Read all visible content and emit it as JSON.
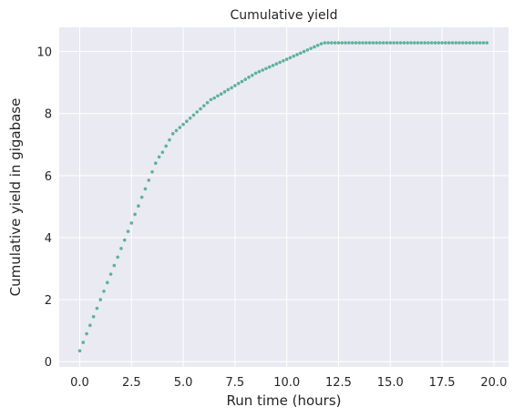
{
  "chart_data": {
    "type": "scatter",
    "title": "Cumulative yield",
    "xlabel": "Run time (hours)",
    "ylabel": "Cumulative yield in gigabase",
    "xlim": [
      -0.99,
      20.71
    ],
    "ylim": [
      -0.17,
      10.78
    ],
    "xticks": [
      0.0,
      2.5,
      5.0,
      7.5,
      10.0,
      12.5,
      15.0,
      17.5,
      20.0
    ],
    "xtick_labels": [
      "0.0",
      "2.5",
      "5.0",
      "7.5",
      "10.0",
      "12.5",
      "15.0",
      "17.5",
      "20.0"
    ],
    "yticks": [
      0,
      2,
      4,
      6,
      8,
      10
    ],
    "ytick_labels": [
      "0",
      "2",
      "4",
      "6",
      "8",
      "10"
    ],
    "grid": true,
    "colors": {
      "background": "#eaeaf2",
      "grid": "#ffffff",
      "series": "#5bb39a",
      "text": "#262626"
    },
    "series": [
      {
        "x": [
          0.0,
          0.1667,
          0.3333,
          0.5,
          0.6667,
          0.8333,
          1.0,
          1.1667,
          1.3333,
          1.5,
          1.6667,
          1.8333,
          2.0,
          2.1667,
          2.3333,
          2.5,
          2.6667,
          2.8333,
          3.0,
          3.1667,
          3.3333,
          3.5,
          3.6667,
          3.8333,
          4.0,
          4.1667,
          4.3333,
          4.5,
          4.6667,
          4.8333,
          5.0,
          5.1667,
          5.3333,
          5.5,
          5.6667,
          5.8333,
          6.0,
          6.1667,
          6.3333,
          6.5,
          6.6667,
          6.8333,
          7.0,
          7.1667,
          7.3333,
          7.5,
          7.6667,
          7.8333,
          8.0,
          8.1667,
          8.3333,
          8.5,
          8.6667,
          8.8333,
          9.0,
          9.1667,
          9.3333,
          9.5,
          9.6667,
          9.8333,
          10.0,
          10.1667,
          10.3333,
          10.5,
          10.6667,
          10.8333,
          11.0,
          11.1667,
          11.3333,
          11.5,
          11.6667,
          11.8333,
          12.0,
          12.1667,
          12.3333,
          12.5,
          12.6667,
          12.8333,
          13.0,
          13.1667,
          13.3333,
          13.5,
          13.6667,
          13.8333,
          14.0,
          14.1667,
          14.3333,
          14.5,
          14.6667,
          14.8333,
          15.0,
          15.1667,
          15.3333,
          15.5,
          15.6667,
          15.8333,
          16.0,
          16.1667,
          16.3333,
          16.5,
          16.6667,
          16.8333,
          17.0,
          17.1667,
          17.3333,
          17.5,
          17.6667,
          17.8333,
          18.0,
          18.1667,
          18.3333,
          18.5,
          18.6667,
          18.8333,
          19.0,
          19.1667,
          19.3333,
          19.5,
          19.6667
        ],
        "y": [
          0.35,
          0.62,
          0.9,
          1.17,
          1.45,
          1.72,
          2.0,
          2.27,
          2.55,
          2.82,
          3.1,
          3.37,
          3.65,
          3.92,
          4.2,
          4.47,
          4.75,
          5.02,
          5.3,
          5.57,
          5.85,
          6.12,
          6.4,
          6.6,
          6.75,
          6.95,
          7.15,
          7.35,
          7.45,
          7.55,
          7.65,
          7.75,
          7.85,
          7.95,
          8.05,
          8.15,
          8.25,
          8.35,
          8.45,
          8.5,
          8.57,
          8.63,
          8.7,
          8.77,
          8.83,
          8.9,
          8.97,
          9.03,
          9.1,
          9.17,
          9.23,
          9.3,
          9.35,
          9.4,
          9.45,
          9.5,
          9.55,
          9.6,
          9.65,
          9.7,
          9.75,
          9.8,
          9.85,
          9.9,
          9.95,
          10.0,
          10.05,
          10.1,
          10.15,
          10.2,
          10.25,
          10.28,
          10.28,
          10.28,
          10.28,
          10.28,
          10.28,
          10.28,
          10.28,
          10.28,
          10.28,
          10.28,
          10.28,
          10.28,
          10.28,
          10.28,
          10.28,
          10.28,
          10.28,
          10.28,
          10.28,
          10.28,
          10.28,
          10.28,
          10.28,
          10.28,
          10.28,
          10.28,
          10.28,
          10.28,
          10.28,
          10.28,
          10.28,
          10.28,
          10.28,
          10.28,
          10.28,
          10.28,
          10.28,
          10.28,
          10.28,
          10.28,
          10.28,
          10.28,
          10.28,
          10.28,
          10.28,
          10.28,
          10.28
        ]
      }
    ]
  }
}
